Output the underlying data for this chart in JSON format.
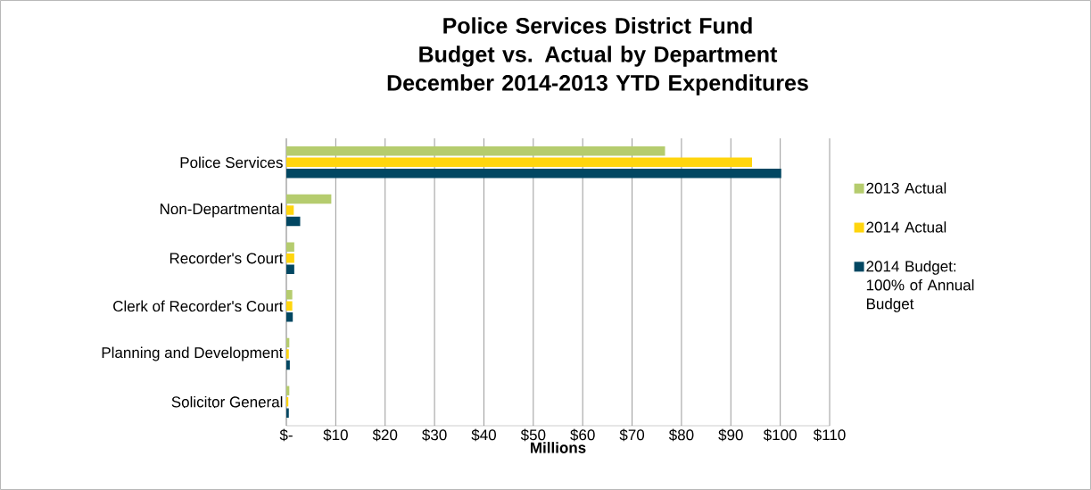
{
  "chart_data": {
    "type": "bar",
    "orientation": "horizontal",
    "title": "Police Services District Fund",
    "subtitle": "Budget vs. Actual by Department December 2014-2013 YTD Expenditures",
    "xlabel": "Millions",
    "categories": [
      "Police Services",
      "Non-Departmental",
      "Recorder's Court",
      "Clerk of Recorder's Court",
      "Planning and Development",
      "Solicitor General"
    ],
    "series": [
      {
        "name": "2013 Actual",
        "color": "#b5cc6e",
        "values": [
          76.7,
          9.1,
          1.6,
          1.2,
          0.6,
          0.6
        ]
      },
      {
        "name": "2014 Actual",
        "color": "#ffd50d",
        "values": [
          94.3,
          1.5,
          1.6,
          1.2,
          0.5,
          0.4
        ]
      },
      {
        "name": "2014 Budget: 100% of Annual Budget",
        "color": "#024762",
        "values": [
          100.2,
          2.8,
          1.6,
          1.3,
          0.7,
          0.5
        ]
      }
    ],
    "xlim": [
      0,
      110
    ],
    "xticks": [
      {
        "value": 0,
        "label": "$-"
      },
      {
        "value": 10,
        "label": "$10"
      },
      {
        "value": 20,
        "label": "$20"
      },
      {
        "value": 30,
        "label": "$30"
      },
      {
        "value": 40,
        "label": "$40"
      },
      {
        "value": 50,
        "label": "$50"
      },
      {
        "value": 60,
        "label": "$60"
      },
      {
        "value": 70,
        "label": "$70"
      },
      {
        "value": 80,
        "label": "$80"
      },
      {
        "value": 90,
        "label": "$90"
      },
      {
        "value": 100,
        "label": "$100"
      },
      {
        "value": 110,
        "label": "$110"
      }
    ],
    "grid": "x",
    "legend": "right"
  }
}
